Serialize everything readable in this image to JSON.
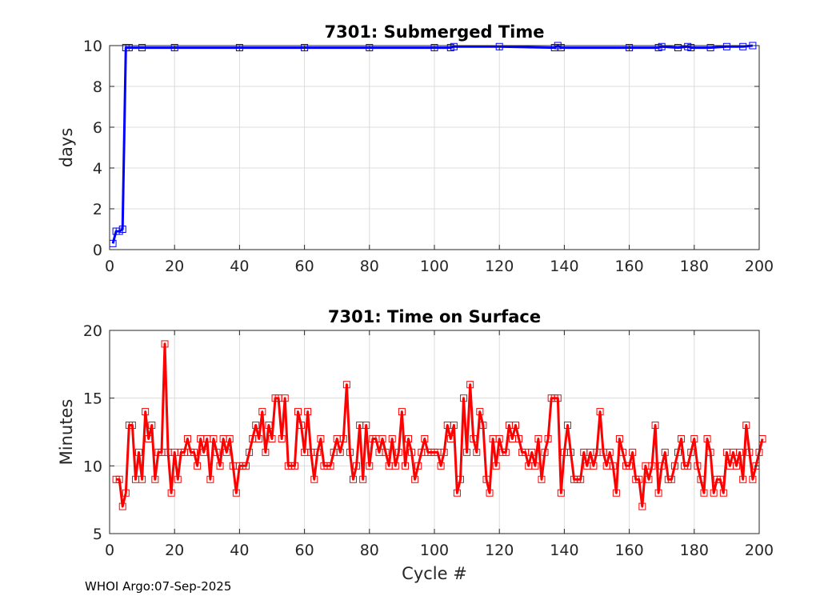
{
  "footer": "WHOI Argo:07-Sep-2025",
  "chart_data": [
    {
      "type": "line",
      "title": "7301: Submerged Time",
      "xlabel": "",
      "ylabel": "days",
      "xlim": [
        0,
        200
      ],
      "ylim": [
        0,
        10
      ],
      "xticks": [
        "0",
        "20",
        "40",
        "60",
        "80",
        "100",
        "120",
        "140",
        "160",
        "180",
        "200"
      ],
      "yticks": [
        "0",
        "2",
        "4",
        "6",
        "8",
        "10"
      ],
      "grid": true,
      "color": "#0000ff",
      "marker": "square",
      "x": [
        1,
        2,
        3,
        4,
        5,
        6,
        10,
        20,
        40,
        60,
        80,
        100,
        105,
        106,
        120,
        137,
        138,
        139,
        160,
        169,
        170,
        175,
        178,
        179,
        185,
        190,
        195,
        198
      ],
      "y": [
        0.3,
        0.9,
        0.9,
        1.0,
        9.9,
        9.9,
        9.9,
        9.9,
        9.9,
        9.9,
        9.9,
        9.9,
        9.9,
        9.95,
        9.95,
        9.9,
        10.0,
        9.9,
        9.9,
        9.9,
        9.95,
        9.9,
        9.95,
        9.9,
        9.9,
        9.95,
        9.95,
        10.0
      ]
    },
    {
      "type": "line",
      "title": "7301: Time on Surface",
      "xlabel": "Cycle #",
      "ylabel": "Minutes",
      "xlim": [
        0,
        200
      ],
      "ylim": [
        5,
        20
      ],
      "xticks": [
        "0",
        "20",
        "40",
        "60",
        "80",
        "100",
        "120",
        "140",
        "160",
        "180",
        "200"
      ],
      "yticks": [
        "5",
        "10",
        "15",
        "20"
      ],
      "grid": true,
      "color": "#ff0000",
      "marker": "square",
      "x_start": 2,
      "y": [
        9,
        9,
        7,
        8,
        13,
        13,
        9,
        11,
        9,
        14,
        12,
        13,
        9,
        11,
        11,
        19,
        11,
        8,
        11,
        9,
        11,
        11,
        12,
        11,
        11,
        10,
        12,
        11,
        12,
        9,
        12,
        11,
        10,
        12,
        11,
        12,
        10,
        8,
        10,
        10,
        10,
        11,
        12,
        13,
        12,
        14,
        11,
        13,
        12,
        15,
        15,
        12,
        15,
        10,
        10,
        10,
        14,
        13,
        11,
        14,
        11,
        9,
        11,
        12,
        10,
        10,
        10,
        11,
        12,
        11,
        12,
        16,
        11,
        9,
        10,
        13,
        9,
        13,
        10,
        12,
        12,
        11,
        12,
        11,
        10,
        12,
        10,
        11,
        14,
        10,
        12,
        11,
        9,
        10,
        11,
        12,
        11,
        11,
        11,
        11,
        10,
        11,
        13,
        12,
        13,
        8,
        9,
        15,
        11,
        16,
        12,
        11,
        14,
        13,
        9,
        8,
        12,
        10,
        12,
        11,
        11,
        13,
        12,
        13,
        12,
        11,
        11,
        10,
        11,
        10,
        12,
        9,
        11,
        12,
        15,
        15,
        15,
        8,
        11,
        13,
        11,
        9,
        9,
        9,
        11,
        10,
        11,
        10,
        11,
        14,
        11,
        10,
        11,
        10,
        8,
        12,
        11,
        10,
        10,
        11,
        9,
        9,
        7,
        10,
        9,
        10,
        13,
        8,
        10,
        11,
        9,
        9,
        10,
        11,
        12,
        10,
        10,
        11,
        12,
        10,
        9,
        8,
        12,
        11,
        8,
        9,
        9,
        8,
        11,
        10,
        11,
        10,
        11,
        9,
        13,
        11,
        9,
        10,
        11,
        12
      ]
    }
  ]
}
